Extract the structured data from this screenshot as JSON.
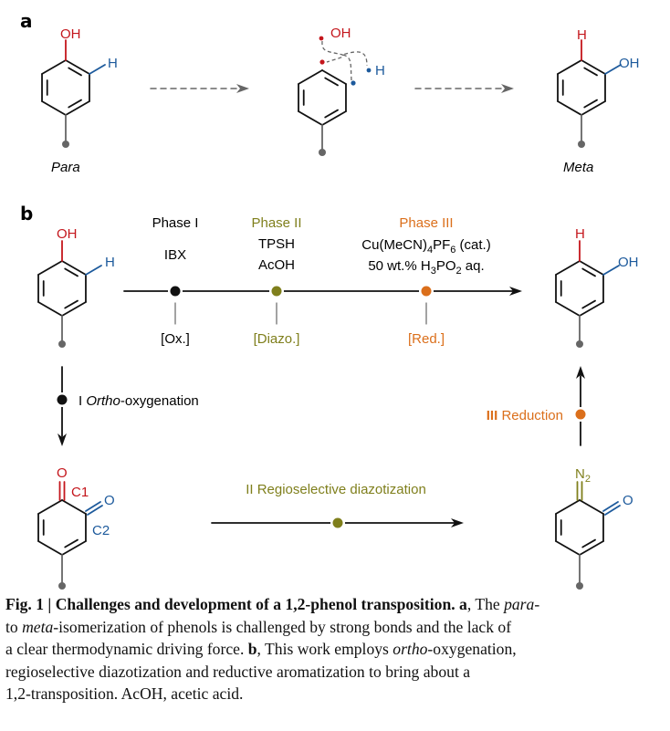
{
  "colors": {
    "red": "#c4161c",
    "blue": "#1d5a9c",
    "olive": "#7f7f1c",
    "orange": "#db6f1b",
    "gray": "#666666",
    "black": "#111111"
  },
  "panel_a": {
    "label": "a",
    "para": {
      "oh": "OH",
      "h": "H",
      "name": "Para"
    },
    "intermediate": {
      "oh": "OH",
      "h": "H"
    },
    "meta": {
      "h": "H",
      "oh": "OH",
      "name": "Meta"
    }
  },
  "panel_b": {
    "label": "b",
    "start": {
      "oh": "OH",
      "h": "H"
    },
    "product": {
      "h": "H",
      "oh": "OH"
    },
    "phases": [
      {
        "title": "Phase I",
        "reagents": [
          "IBX"
        ],
        "tag": "[Ox.]",
        "color": "#111111"
      },
      {
        "title": "Phase II",
        "reagents": [
          "TPSH",
          "AcOH"
        ],
        "tag": "[Diazo.]",
        "color": "#7f7f1c"
      },
      {
        "title": "Phase III",
        "tag": "[Red.]",
        "color": "#db6f1b",
        "reagent_line1": [
          "Cu(MeCN)",
          "4",
          "PF",
          "6",
          " (cat.)"
        ],
        "reagent_line2": [
          "50 wt.%  H",
          "3",
          "PO",
          "2",
          " aq."
        ]
      }
    ],
    "step1": {
      "numeral": "I",
      "italic": "Ortho",
      "rest": "-oxygenation"
    },
    "step2": {
      "text": "II Regioselective diazotization"
    },
    "step3": {
      "numeral": "III",
      "rest": " Reduction"
    },
    "quinone": {
      "o1": "O",
      "c1": "C1",
      "o2": "O",
      "c2": "C2"
    },
    "diazo": {
      "n": "N",
      "n_sub": "2",
      "o": "O"
    }
  },
  "caption": {
    "lines": [
      [
        {
          "t": "Fig. 1 | Challenges and development of a 1,2-phenol transposition. a",
          "s": "b"
        },
        {
          "t": ", The ",
          "s": ""
        },
        {
          "t": "para",
          "s": "i"
        },
        {
          "t": "-",
          "s": ""
        }
      ],
      [
        {
          "t": "to ",
          "s": ""
        },
        {
          "t": "meta",
          "s": "i"
        },
        {
          "t": "-isomerization of phenols is challenged by strong bonds and the lack of",
          "s": ""
        }
      ],
      [
        {
          "t": "a clear thermodynamic driving force. ",
          "s": ""
        },
        {
          "t": "b",
          "s": "b"
        },
        {
          "t": ", This work employs ",
          "s": ""
        },
        {
          "t": "ortho",
          "s": "i"
        },
        {
          "t": "-oxygenation,",
          "s": ""
        }
      ],
      [
        {
          "t": "regioselective diazotization and reductive aromatization to bring about a",
          "s": ""
        }
      ],
      [
        {
          "t": "1,2-transposition. AcOH, acetic acid.",
          "s": ""
        }
      ]
    ]
  }
}
